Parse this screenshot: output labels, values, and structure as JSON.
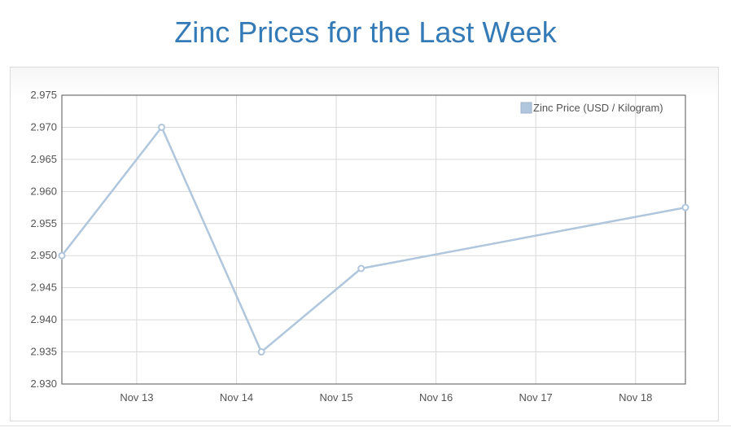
{
  "page": {
    "title": "Zinc Prices for the Last Week"
  },
  "chart_data": {
    "type": "line",
    "title": "Zinc Prices for the Last Week",
    "xlabel": "",
    "ylabel": "",
    "x_ticks": [
      "Nov 13",
      "Nov 14",
      "Nov 15",
      "Nov 16",
      "Nov 17",
      "Nov 18"
    ],
    "y_ticks": [
      "2.975",
      "2.970",
      "2.965",
      "2.960",
      "2.955",
      "2.950",
      "2.945",
      "2.940",
      "2.935",
      "2.930"
    ],
    "ylim": [
      2.93,
      2.975
    ],
    "xlim": [
      "2017-11-12 18:00",
      "2017-11-19 00:00"
    ],
    "grid": true,
    "legend_position": "top-right",
    "series": [
      {
        "name": "Zinc Price (USD / Kilogram)",
        "color": "#b0c6dd",
        "x": [
          "2017-11-12 18:00",
          "2017-11-13 18:00",
          "2017-11-14 18:00",
          "2017-11-15 18:00",
          "2017-11-19 00:00"
        ],
        "values": [
          2.95,
          2.97,
          2.935,
          2.948,
          2.9575
        ]
      }
    ]
  },
  "colors": {
    "title": "#337ab7",
    "grid": "#d9d9d9",
    "axis_border": "#545454",
    "tick_text": "#545454",
    "series_line": "#b0c6dd",
    "point_fill": "#ffffff"
  }
}
